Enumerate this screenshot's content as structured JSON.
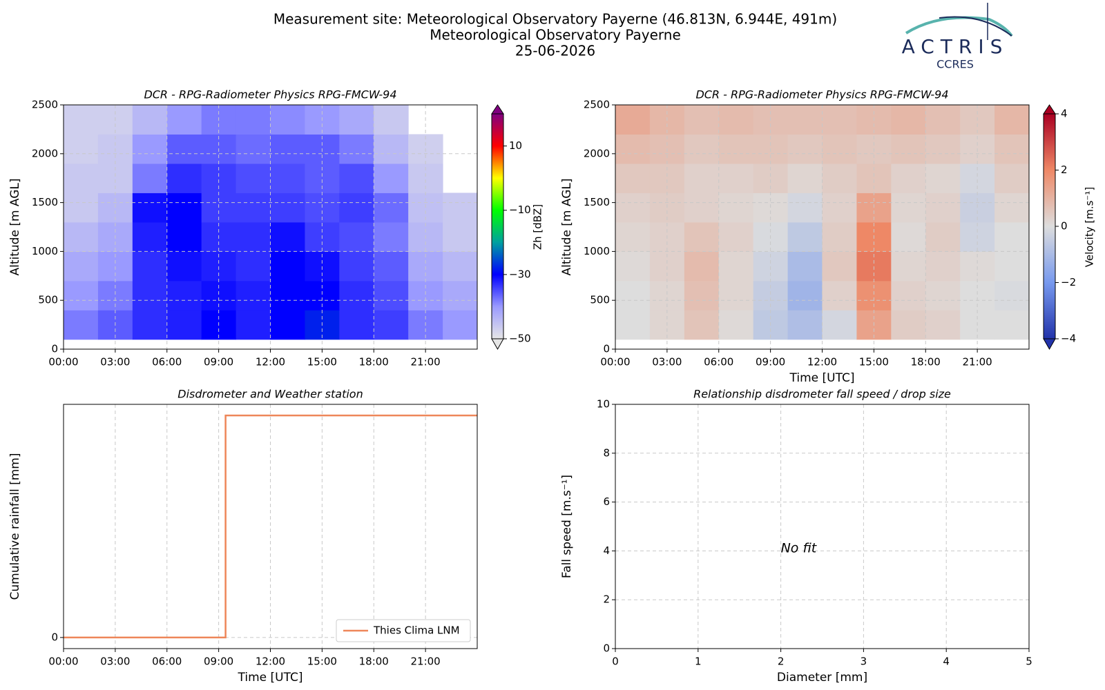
{
  "figure": {
    "title_lines": [
      "Measurement site: Meteorological Observatory Payerne (46.813N, 6.944E, 491m)",
      "Meteorological Observatory Payerne",
      "25-06-2026"
    ],
    "logo_text": "ACTRIS",
    "logo_subtext": "CCRES"
  },
  "chart_data": [
    {
      "type": "heatmap",
      "title": "DCR - RPG-Radiometer Physics RPG-FMCW-94",
      "ylabel": "Altitude [m AGL]",
      "xlim": [
        0,
        24
      ],
      "ylim": [
        0,
        2500
      ],
      "xticks": [
        {
          "value": 0,
          "label": "00:00"
        },
        {
          "value": 3,
          "label": "03:00"
        },
        {
          "value": 6,
          "label": "06:00"
        },
        {
          "value": 9,
          "label": "09:00"
        },
        {
          "value": 12,
          "label": "12:00"
        },
        {
          "value": 15,
          "label": "15:00"
        },
        {
          "value": 18,
          "label": "18:00"
        },
        {
          "value": 21,
          "label": "21:00"
        }
      ],
      "yticks": [
        0,
        500,
        1000,
        1500,
        2000,
        2500
      ],
      "grid": true,
      "x_edges": [
        0,
        2,
        4,
        6,
        8,
        10,
        12,
        14,
        16,
        18,
        20,
        22,
        24
      ],
      "y_edges": [
        100,
        400,
        700,
        1000,
        1300,
        1600,
        1900,
        2200,
        2500
      ],
      "z": [
        [
          -38,
          -36,
          -33,
          -32,
          -30,
          -32,
          -30,
          -28,
          -33,
          -34,
          -38,
          -40
        ],
        [
          -40,
          -38,
          -33,
          -32,
          -31,
          -32,
          -30,
          -30,
          -33,
          -35,
          -40,
          -42
        ],
        [
          -42,
          -40,
          -33,
          -31,
          -32,
          -33,
          -30,
          -31,
          -34,
          -36,
          -42,
          -44
        ],
        [
          -44,
          -42,
          -32,
          -30,
          -33,
          -33,
          -31,
          -34,
          -35,
          -38,
          -44,
          -46
        ],
        [
          -46,
          -44,
          -31,
          -30,
          -34,
          -34,
          -34,
          -35,
          -34,
          -37,
          -45,
          -46
        ],
        [
          -46,
          -46,
          -38,
          -33,
          -34,
          -35,
          -35,
          -36,
          -35,
          -40,
          -46,
          null
        ],
        [
          -47,
          -46,
          -40,
          -36,
          -36,
          -37,
          -36,
          -36,
          -38,
          -44,
          -47,
          null
        ],
        [
          -47,
          -47,
          -44,
          -40,
          -38,
          -38,
          -39,
          -40,
          -42,
          -46,
          null,
          null
        ]
      ],
      "clim": [
        -50,
        20
      ],
      "cticks": [
        {
          "value": -50,
          "label": "−50"
        },
        {
          "value": -30,
          "label": "−30"
        },
        {
          "value": -10,
          "label": "−10"
        },
        10
      ],
      "clabel": "Zh [dBZ]",
      "colormap": [
        "#e6e6e6",
        "#9a9aff",
        "#0000ff",
        "#00a0a0",
        "#00ff00",
        "#ffff00",
        "#ff0000",
        "#800080"
      ]
    },
    {
      "type": "heatmap",
      "title": "DCR - RPG-Radiometer Physics RPG-FMCW-94",
      "xlabel": "Time [UTC]",
      "ylabel": "Altitude [m AGL]",
      "xlim": [
        0,
        24
      ],
      "ylim": [
        0,
        2500
      ],
      "xticks": [
        {
          "value": 0,
          "label": "00:00"
        },
        {
          "value": 3,
          "label": "03:00"
        },
        {
          "value": 6,
          "label": "06:00"
        },
        {
          "value": 9,
          "label": "09:00"
        },
        {
          "value": 12,
          "label": "12:00"
        },
        {
          "value": 15,
          "label": "15:00"
        },
        {
          "value": 18,
          "label": "18:00"
        },
        {
          "value": 21,
          "label": "21:00"
        }
      ],
      "yticks": [
        0,
        500,
        1000,
        1500,
        2000,
        2500
      ],
      "grid": true,
      "x_edges": [
        0,
        2,
        4,
        6,
        8,
        10,
        12,
        14,
        16,
        18,
        20,
        22,
        24
      ],
      "y_edges": [
        100,
        400,
        700,
        1000,
        1300,
        1600,
        1900,
        2200,
        2500
      ],
      "z": [
        [
          0,
          0.2,
          0.6,
          0.1,
          -0.6,
          -0.9,
          -0.2,
          1.4,
          0.4,
          0.3,
          0,
          0
        ],
        [
          0,
          0.2,
          0.7,
          0.2,
          -0.5,
          -1.2,
          0.3,
          1.8,
          0.3,
          0.2,
          0,
          -0.1
        ],
        [
          0.1,
          0.3,
          0.8,
          0.2,
          -0.3,
          -1,
          0.5,
          2.2,
          0.2,
          0.3,
          0.1,
          0
        ],
        [
          0.2,
          0.3,
          0.6,
          0.3,
          -0.1,
          -0.6,
          0.4,
          2,
          0.1,
          0.4,
          -0.3,
          0
        ],
        [
          0.3,
          0.4,
          0.3,
          0.2,
          0.1,
          -0.2,
          0.3,
          1.4,
          0.2,
          0.3,
          -0.4,
          0.2
        ],
        [
          0.5,
          0.5,
          0.3,
          0.3,
          0.4,
          0.2,
          0.4,
          0.6,
          0.3,
          0.2,
          -0.2,
          0.4
        ],
        [
          0.8,
          0.7,
          0.5,
          0.6,
          0.6,
          0.5,
          0.6,
          0.5,
          0.6,
          0.5,
          0.3,
          0.6
        ],
        [
          1.2,
          0.9,
          0.7,
          0.8,
          0.7,
          0.7,
          0.7,
          0.8,
          0.9,
          0.7,
          0.5,
          0.9
        ]
      ],
      "clim": [
        -4,
        4
      ],
      "cticks": [
        {
          "value": -4,
          "label": "−4"
        },
        {
          "value": -2,
          "label": "−2"
        },
        0,
        2,
        4
      ],
      "clabel": "Velocity [m.s⁻¹]",
      "colormap": [
        "#2233aa",
        "#7799ee",
        "#dddddd",
        "#ee8866",
        "#aa0022"
      ]
    },
    {
      "type": "line",
      "title": "Disdrometer and Weather station",
      "xlabel": "Time [UTC]",
      "ylabel": "Cumulative rainfall [mm]",
      "xlim": [
        0,
        24
      ],
      "ylim": [
        -0.05,
        1.05
      ],
      "xticks": [
        {
          "value": 0,
          "label": "00:00"
        },
        {
          "value": 3,
          "label": "03:00"
        },
        {
          "value": 6,
          "label": "06:00"
        },
        {
          "value": 9,
          "label": "09:00"
        },
        {
          "value": 12,
          "label": "12:00"
        },
        {
          "value": 15,
          "label": "15:00"
        },
        {
          "value": 18,
          "label": "18:00"
        },
        {
          "value": 21,
          "label": "21:00"
        }
      ],
      "yticks": [
        0
      ],
      "grid": true,
      "legend": "lower right",
      "x": [
        0,
        9.4,
        9.4,
        24
      ],
      "series": [
        {
          "name": "Thies Clima LNM",
          "color": "#ee8659",
          "values": [
            0,
            0,
            1,
            1
          ]
        }
      ]
    },
    {
      "type": "scatter",
      "title": "Relationship disdrometer fall speed / drop size",
      "xlabel": "Diameter [mm]",
      "ylabel": "Fall speed [m.s⁻¹]",
      "xlim": [
        0,
        5
      ],
      "ylim": [
        0,
        10
      ],
      "xticks": [
        0,
        1,
        2,
        3,
        4,
        5
      ],
      "yticks": [
        0,
        2,
        4,
        6,
        8,
        10
      ],
      "grid": true,
      "annotation": "No fit"
    }
  ]
}
